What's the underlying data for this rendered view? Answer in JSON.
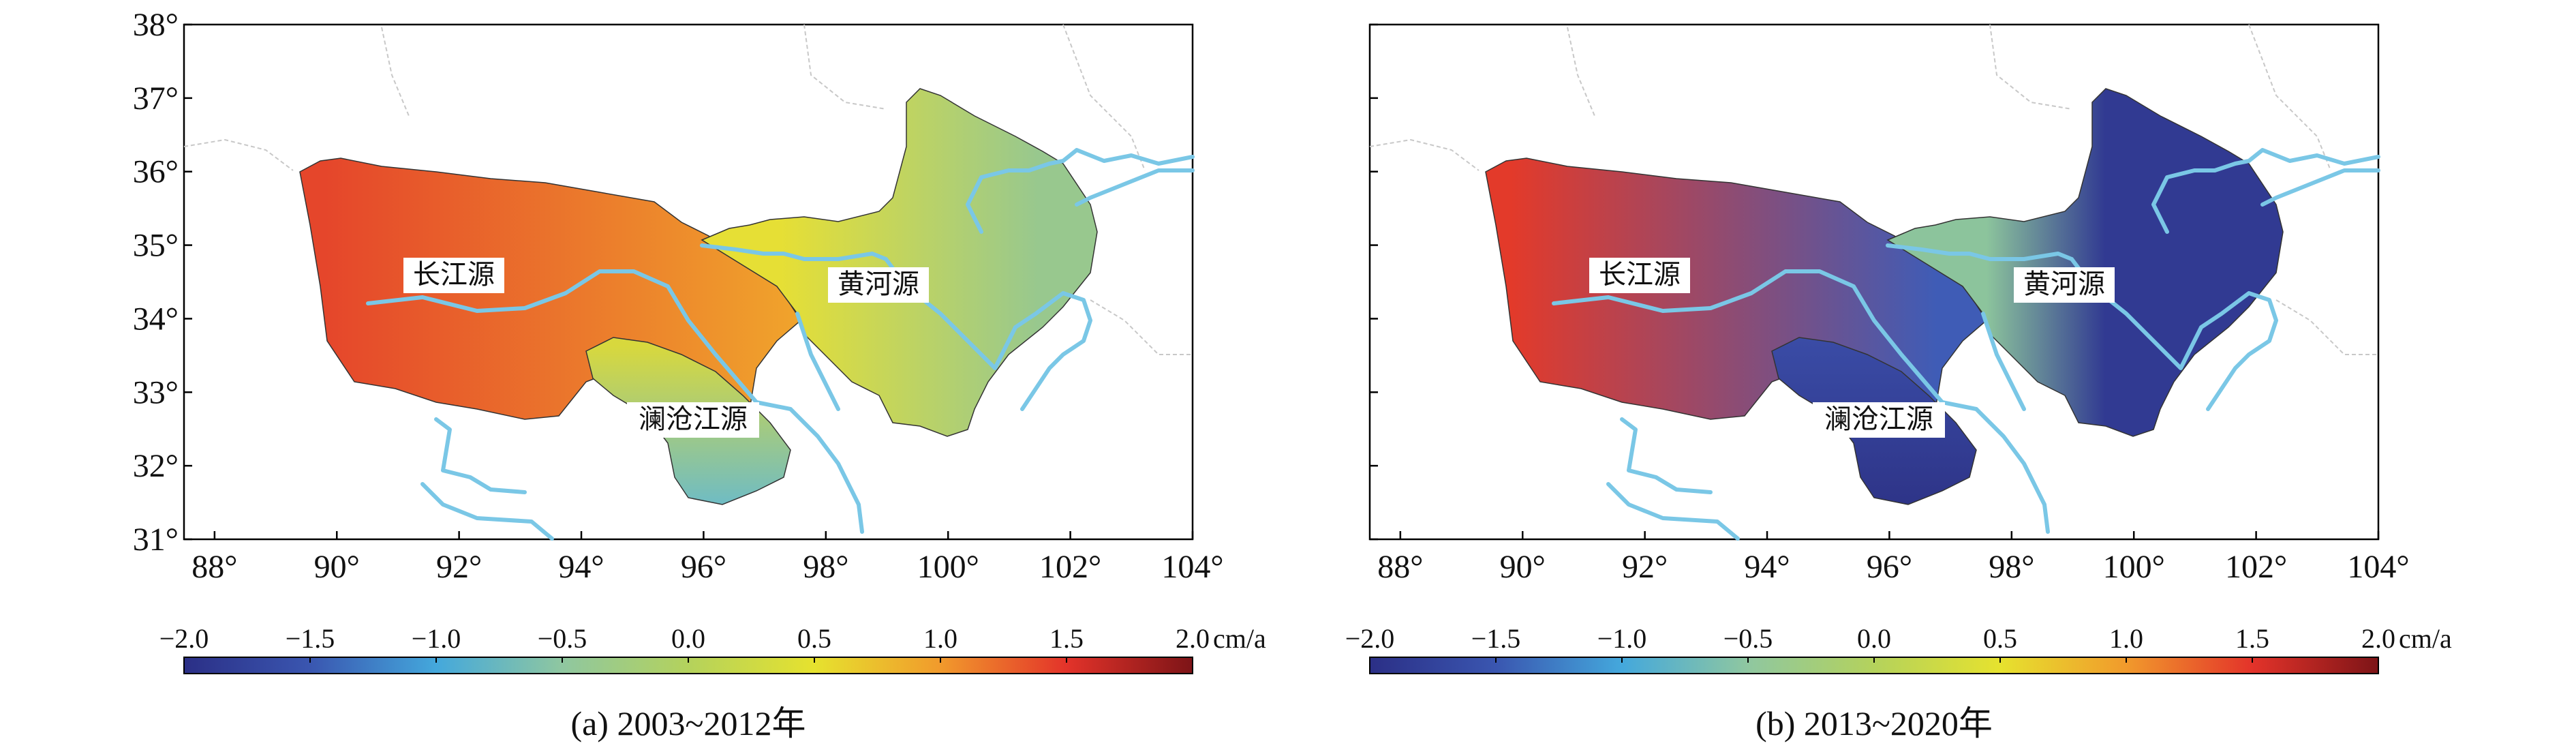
{
  "colorbar": {
    "ticks": [
      "−2.0",
      "−1.5",
      "−1.0",
      "−0.5",
      "0.0",
      "0.5",
      "1.0",
      "1.5",
      "2.0"
    ],
    "unit": "cm/a",
    "stops": [
      "#2b2f86",
      "#3a56b0",
      "#44a8dc",
      "#8fc7a0",
      "#b4d25c",
      "#e6e22e",
      "#f19a2c",
      "#e3332a",
      "#7d1417"
    ]
  },
  "axes": {
    "lat_labels": [
      "38°",
      "37°",
      "36°",
      "35°",
      "34°",
      "33°",
      "32°",
      "31°"
    ],
    "lon_labels": [
      "88°",
      "90°",
      "92°",
      "94°",
      "96°",
      "98°",
      "100°",
      "102°",
      "104°"
    ],
    "lat_range": [
      31,
      38
    ],
    "lon_range": [
      87.5,
      104
    ]
  },
  "regions": {
    "yangtze": "长江源",
    "yellow": "黄河源",
    "lancang": "澜沧江源"
  },
  "panels": [
    {
      "caption": "(a) 2003~2012年",
      "show_lat_labels": true,
      "colors": {
        "yangtze_w": "#e5462b",
        "yangtze_e": "#f0a42c",
        "yellow_w": "#e6df35",
        "yellow_e": "#98c88e",
        "lancang_n": "#d8d83d",
        "lancang_s": "#6fbcc4"
      }
    },
    {
      "caption": "(b) 2013~2020年",
      "show_lat_labels": false,
      "colors": {
        "yangtze_w": "#e33a2a",
        "yangtze_e": "#3f5cb6",
        "yellow_w": "#8cc49c",
        "yellow_e": "#313a92",
        "lancang_n": "#3a4ca6",
        "lancang_s": "#2e3488"
      }
    }
  ]
}
